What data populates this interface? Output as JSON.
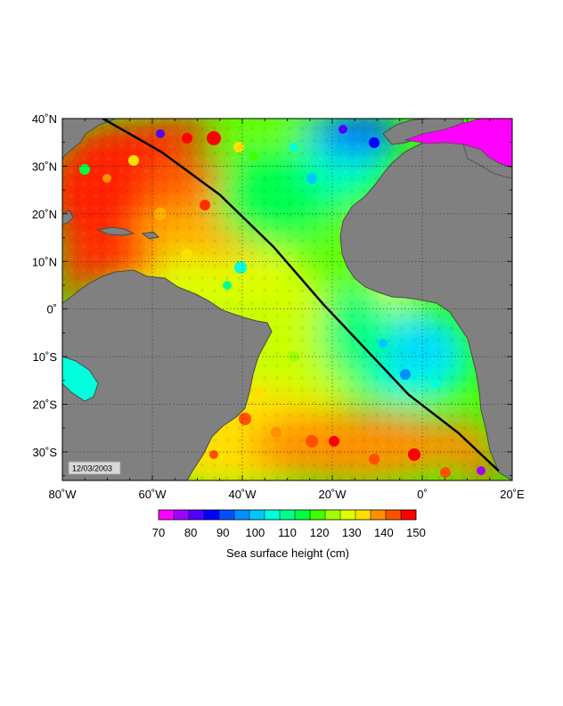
{
  "map": {
    "date_stamp": "12/03/2003",
    "lon_ticks": [
      {
        "lon": -80,
        "label": "80˚W"
      },
      {
        "lon": -60,
        "label": "60˚W"
      },
      {
        "lon": -40,
        "label": "40˚W"
      },
      {
        "lon": -20,
        "label": "20˚W"
      },
      {
        "lon": 0,
        "label": "0˚"
      },
      {
        "lon": 20,
        "label": "20˚E"
      }
    ],
    "lat_ticks": [
      {
        "lat": 40,
        "label": "40˚N"
      },
      {
        "lat": 30,
        "label": "30˚N"
      },
      {
        "lat": 20,
        "label": "20˚N"
      },
      {
        "lat": 10,
        "label": "10˚N"
      },
      {
        "lat": 0,
        "label": "0˚"
      },
      {
        "lat": -10,
        "label": "10˚S"
      },
      {
        "lat": -20,
        "label": "20˚S"
      },
      {
        "lat": -30,
        "label": "30˚S"
      }
    ],
    "lon_range": [
      -80,
      20
    ],
    "lat_range": [
      -36,
      40
    ],
    "grid": true,
    "track_line": {
      "color": "#000000",
      "points": [
        [
          -71,
          40
        ],
        [
          -58,
          33
        ],
        [
          -45,
          24
        ],
        [
          -33,
          13
        ],
        [
          -22,
          1
        ],
        [
          -13,
          -8
        ],
        [
          -3,
          -18
        ],
        [
          8,
          -26
        ],
        [
          17,
          -34
        ]
      ]
    }
  },
  "colorbar": {
    "caption": "Sea surface height (cm)",
    "labels": [
      "70",
      "80",
      "90",
      "100",
      "110",
      "120",
      "130",
      "140",
      "150"
    ],
    "colors": [
      "#ff00ff",
      "#a000ff",
      "#5000ff",
      "#0000ff",
      "#0050ff",
      "#0090ff",
      "#00c8ff",
      "#00ffdc",
      "#00ff90",
      "#00ff40",
      "#40ff00",
      "#a0ff00",
      "#e0ff00",
      "#ffe000",
      "#ff9000",
      "#ff5000",
      "#ff0000"
    ]
  },
  "colors": {
    "land": "#808080",
    "coast": "#4a4a4a"
  }
}
